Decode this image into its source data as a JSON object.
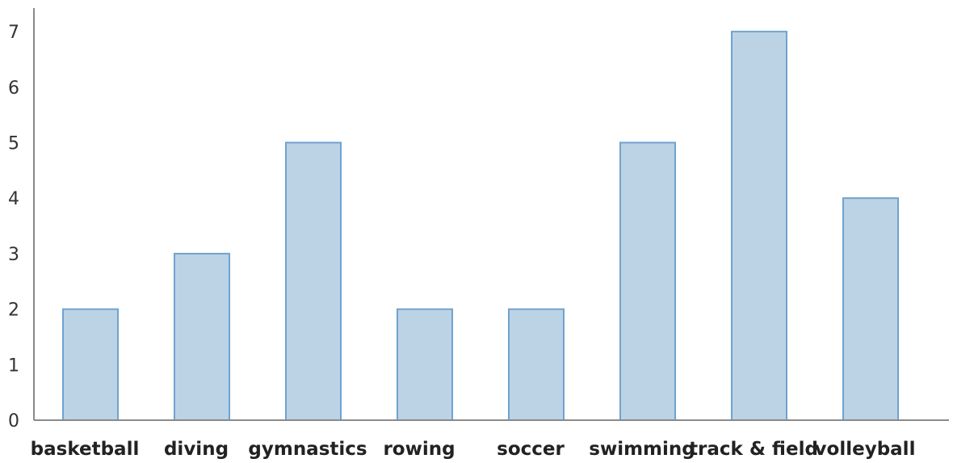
{
  "chart_data": {
    "type": "bar",
    "title": "",
    "xlabel": "",
    "ylabel": "",
    "categories": [
      "basketball",
      "diving",
      "gymnastics",
      "rowing",
      "soccer",
      "swimming",
      "track & field",
      "volleyball"
    ],
    "values": [
      2,
      3,
      5,
      2,
      2,
      5,
      7,
      4
    ],
    "ylim": [
      0,
      7
    ],
    "yticks": [
      "0",
      "1",
      "2",
      "3",
      "4",
      "5",
      "6",
      "7"
    ],
    "grid": false,
    "legend": "none",
    "colors": {
      "bar_fill": "#bcd3e6",
      "bar_stroke": "#6fa3cf",
      "axis": "#8a8a8a"
    }
  }
}
